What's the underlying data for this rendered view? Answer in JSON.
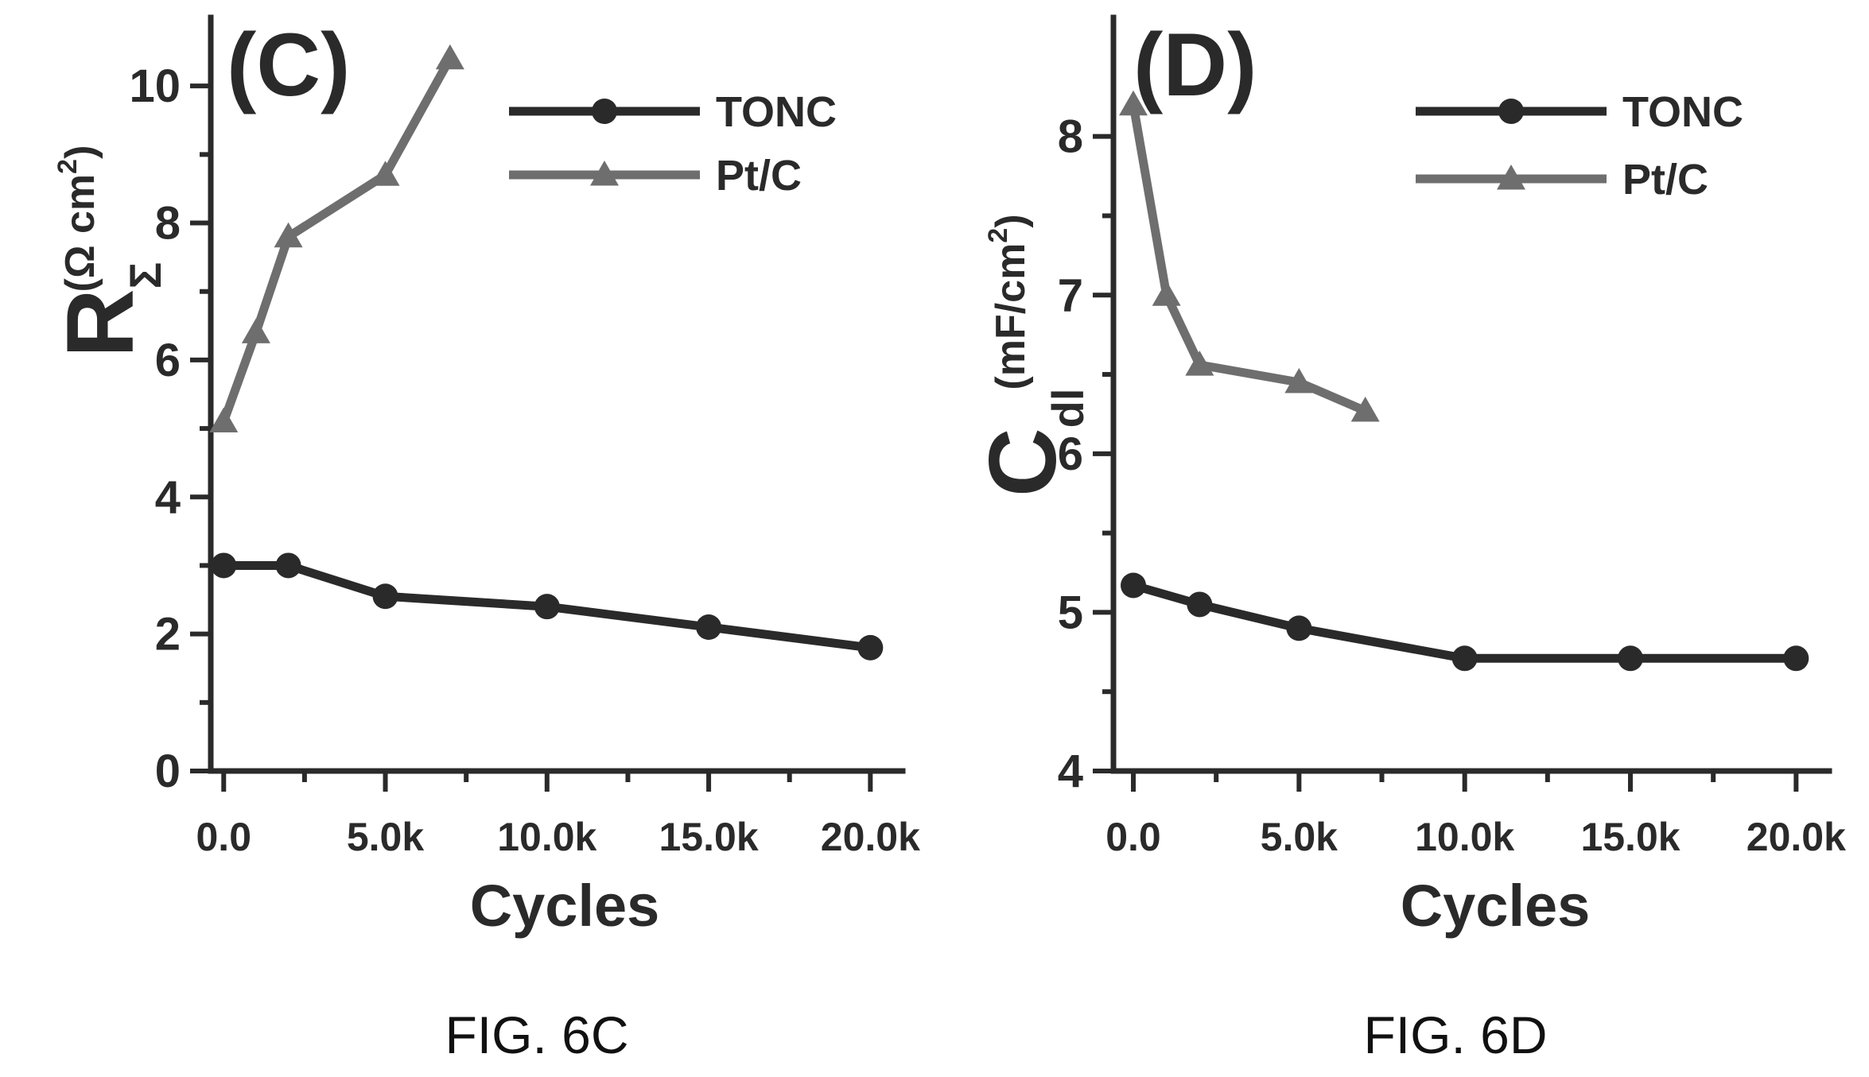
{
  "chart_data": [
    {
      "type": "line",
      "panel_label": "(C)",
      "caption": "FIG. 6C",
      "xlabel": "Cycles",
      "ylabel_main": "R",
      "ylabel_sub": "Σ",
      "ylabel_unit": "(Ω cm",
      "ylabel_unit_sup": "2",
      "ylabel_unit_close": ")",
      "xlim": [
        -400,
        21000
      ],
      "ylim": [
        0,
        11
      ],
      "xticks": [
        0,
        5000,
        10000,
        15000,
        20000
      ],
      "xtick_labels": [
        "0.0",
        "5.0k",
        "10.0k",
        "15.0k",
        "20.0k"
      ],
      "yticks": [
        0,
        2,
        4,
        6,
        8,
        10
      ],
      "ytick_labels": [
        "0",
        "2",
        "4",
        "6",
        "8",
        "10"
      ],
      "legend_position": "top-right",
      "series": [
        {
          "name": "TONC",
          "color": "#2a2a2a",
          "marker": "circle",
          "x": [
            0,
            2000,
            5000,
            10000,
            15000,
            20000
          ],
          "y": [
            3.0,
            3.0,
            2.55,
            2.4,
            2.1,
            1.8
          ]
        },
        {
          "name": "Pt/C",
          "color": "#6e6e6e",
          "marker": "triangle",
          "x": [
            0,
            1000,
            2000,
            5000,
            7000
          ],
          "y": [
            5.1,
            6.4,
            7.8,
            8.7,
            10.4
          ]
        }
      ]
    },
    {
      "type": "line",
      "panel_label": "(D)",
      "caption": "FIG. 6D",
      "xlabel": "Cycles",
      "ylabel_main": "C",
      "ylabel_sub": "dl",
      "ylabel_unit": "(mF/cm",
      "ylabel_unit_sup": "2",
      "ylabel_unit_close": ")",
      "xlim": [
        -600,
        21000
      ],
      "ylim": [
        4,
        8.75
      ],
      "xticks": [
        0,
        5000,
        10000,
        15000,
        20000
      ],
      "xtick_labels": [
        "0.0",
        "5.0k",
        "10.0k",
        "15.0k",
        "20.0k"
      ],
      "yticks": [
        4,
        5,
        6,
        7,
        8
      ],
      "ytick_labels": [
        "4",
        "5",
        "6",
        "7",
        "8"
      ],
      "legend_position": "top-right",
      "series": [
        {
          "name": "TONC",
          "color": "#2a2a2a",
          "marker": "circle",
          "x": [
            0,
            2000,
            5000,
            10000,
            15000,
            20000
          ],
          "y": [
            5.17,
            5.05,
            4.9,
            4.71,
            4.71,
            4.71
          ]
        },
        {
          "name": "Pt/C",
          "color": "#6e6e6e",
          "marker": "triangle",
          "x": [
            0,
            1000,
            2000,
            5000,
            7000
          ],
          "y": [
            8.2,
            7.0,
            6.56,
            6.45,
            6.27
          ]
        }
      ]
    }
  ]
}
